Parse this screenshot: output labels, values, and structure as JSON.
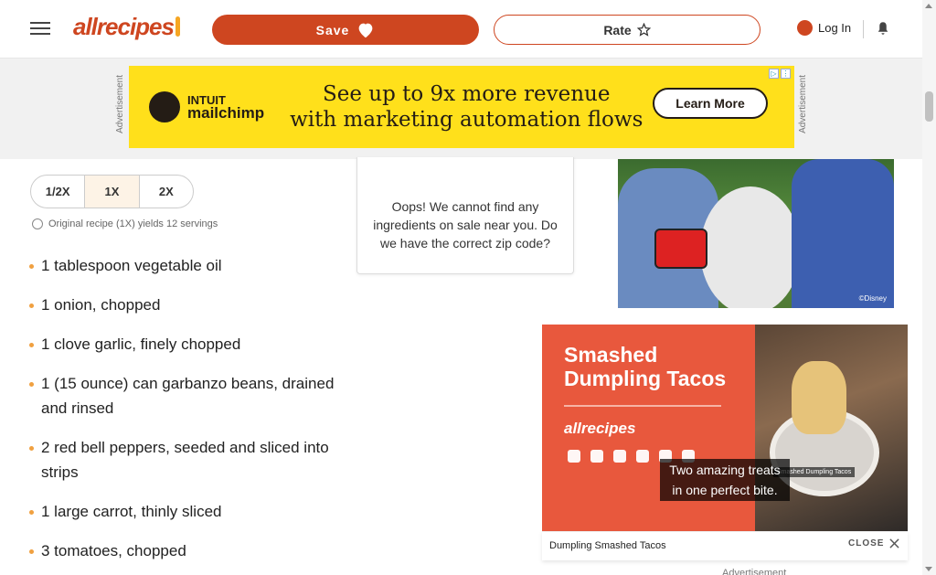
{
  "header": {
    "logo_text": "allrecipes",
    "save_label": "Save",
    "rate_label": "Rate",
    "login_label": "Log In"
  },
  "ad_banner": {
    "side_label": "Advertisement",
    "brand_line1": "INTUIT",
    "brand_line2": "mailchimp",
    "headline_line1": "See up to 9x more revenue",
    "headline_line2": "with marketing automation flows",
    "cta": "Learn More"
  },
  "servings": {
    "options": [
      "1/2X",
      "1X",
      "2X"
    ],
    "selected": "1X",
    "yields_text": "Original recipe (1X) yields 12 servings"
  },
  "ingredients": [
    "1 tablespoon vegetable oil",
    "1 onion, chopped",
    "1 clove garlic, finely chopped",
    "1 (15 ounce) can garbanzo beans, drained and rinsed",
    "2 red bell peppers, seeded and sliced into strips",
    "1 large carrot, thinly sliced",
    "3 tomatoes, chopped"
  ],
  "sale_card": {
    "message": "Oops! We cannot find any ingredients on sale near you. Do we have the correct zip code?"
  },
  "photo": {
    "credit": "©Disney"
  },
  "video": {
    "title_line1": "Smashed",
    "title_line2": "Dumpling Tacos",
    "logo_text": "allrecipes",
    "food_tag": "Smashed Dumpling Tacos",
    "caption_line1": "Two amazing treats",
    "caption_line2": "in one perfect bite.",
    "footer_title": "Dumpling Smashed Tacos",
    "close_label": "CLOSE",
    "bottom_label": "Advertisement"
  },
  "colors": {
    "brand": "#ce4620",
    "ad_yellow": "#ffe01b",
    "video_bg": "#e8583d",
    "bullet": "#f0a040"
  }
}
